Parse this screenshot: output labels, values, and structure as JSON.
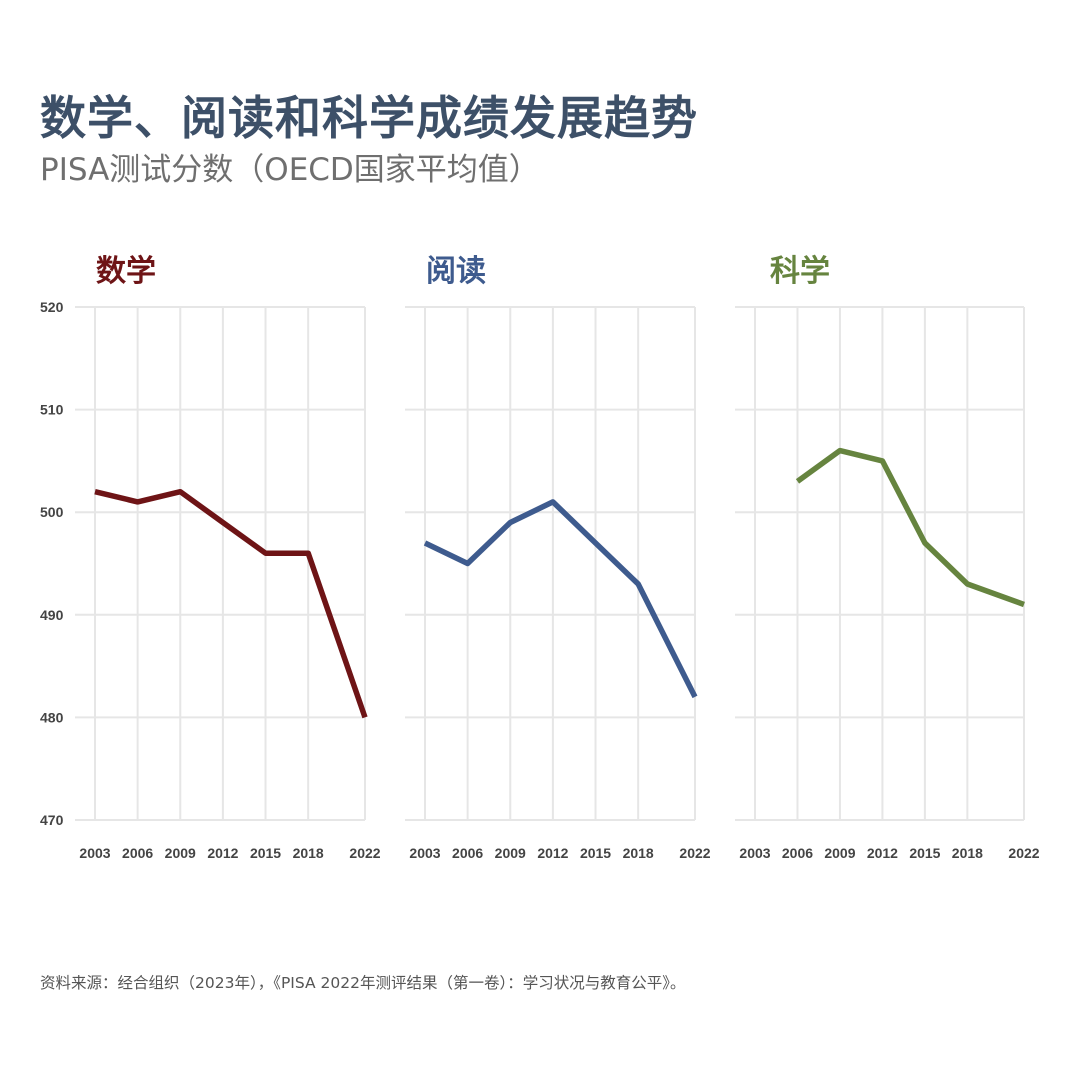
{
  "title": "数学、阅读和科学成绩发展趋势",
  "subtitle": "PISA测试分数（OECD国家平均值）",
  "source": "资料来源：经合组织（2023年），《PISA 2022年测评结果（第一卷）：学习状况与教育公平》。",
  "chart_data": [
    {
      "type": "line",
      "title": "数学",
      "color": "#6e1416",
      "x": [
        2003,
        2006,
        2009,
        2012,
        2015,
        2018,
        2022
      ],
      "values": [
        502,
        501,
        502,
        499,
        496,
        496,
        480
      ],
      "x_ticks": [
        "2003",
        "2006",
        "2009",
        "2012",
        "2015",
        "2018",
        "2022"
      ],
      "y_ticks": [
        "520",
        "510",
        "500",
        "490",
        "480",
        "470"
      ],
      "ylim": [
        470,
        520
      ],
      "grid": true
    },
    {
      "type": "line",
      "title": "阅读",
      "color": "#3e5b8e",
      "x": [
        2003,
        2006,
        2009,
        2012,
        2015,
        2018,
        2022
      ],
      "values": [
        497,
        495,
        499,
        501,
        497,
        493,
        482
      ],
      "x_ticks": [
        "2003",
        "2006",
        "2009",
        "2012",
        "2015",
        "2018",
        "2022"
      ],
      "ylim": [
        470,
        520
      ],
      "grid": true
    },
    {
      "type": "line",
      "title": "科学",
      "color": "#66843f",
      "x": [
        2006,
        2009,
        2012,
        2015,
        2018,
        2022
      ],
      "values": [
        503,
        506,
        505,
        497,
        493,
        491
      ],
      "x_ticks": [
        "2003",
        "2006",
        "2009",
        "2012",
        "2015",
        "2018",
        "2022"
      ],
      "ylim": [
        470,
        520
      ],
      "grid": true
    }
  ]
}
